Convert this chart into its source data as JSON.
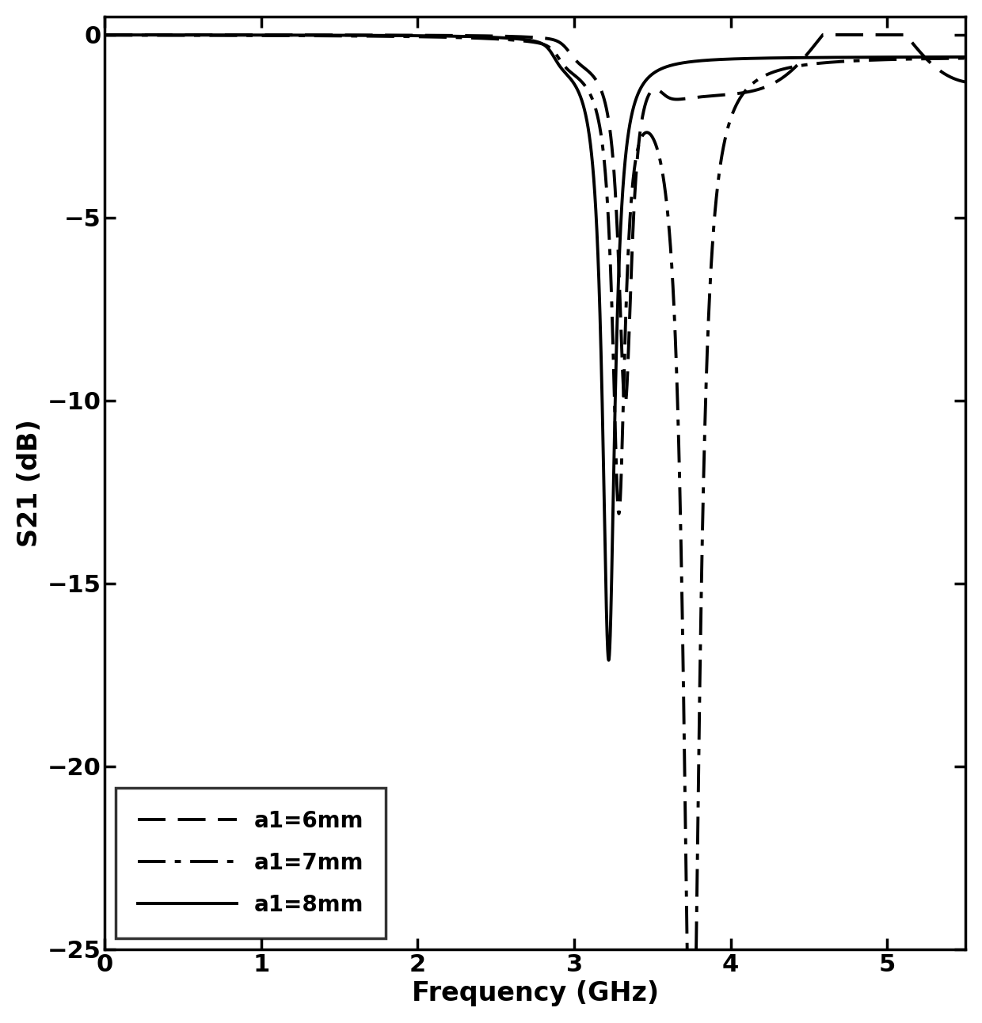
{
  "title": "",
  "xlabel": "Frequency (GHz)",
  "ylabel": "S21 (dB)",
  "xlim": [
    0,
    5.5
  ],
  "ylim": [
    -25,
    0.5
  ],
  "yticks": [
    0,
    -5,
    -10,
    -15,
    -20,
    -25
  ],
  "xticks": [
    0,
    1,
    2,
    3,
    4,
    5
  ],
  "background_color": "#ffffff",
  "line_color": "#000000",
  "legend_labels": [
    "a1=6mm",
    "a1=7mm",
    "a1=8mm"
  ],
  "font_size": 22,
  "label_font_size": 24,
  "legend_font_size": 20,
  "linewidth": 2.8
}
